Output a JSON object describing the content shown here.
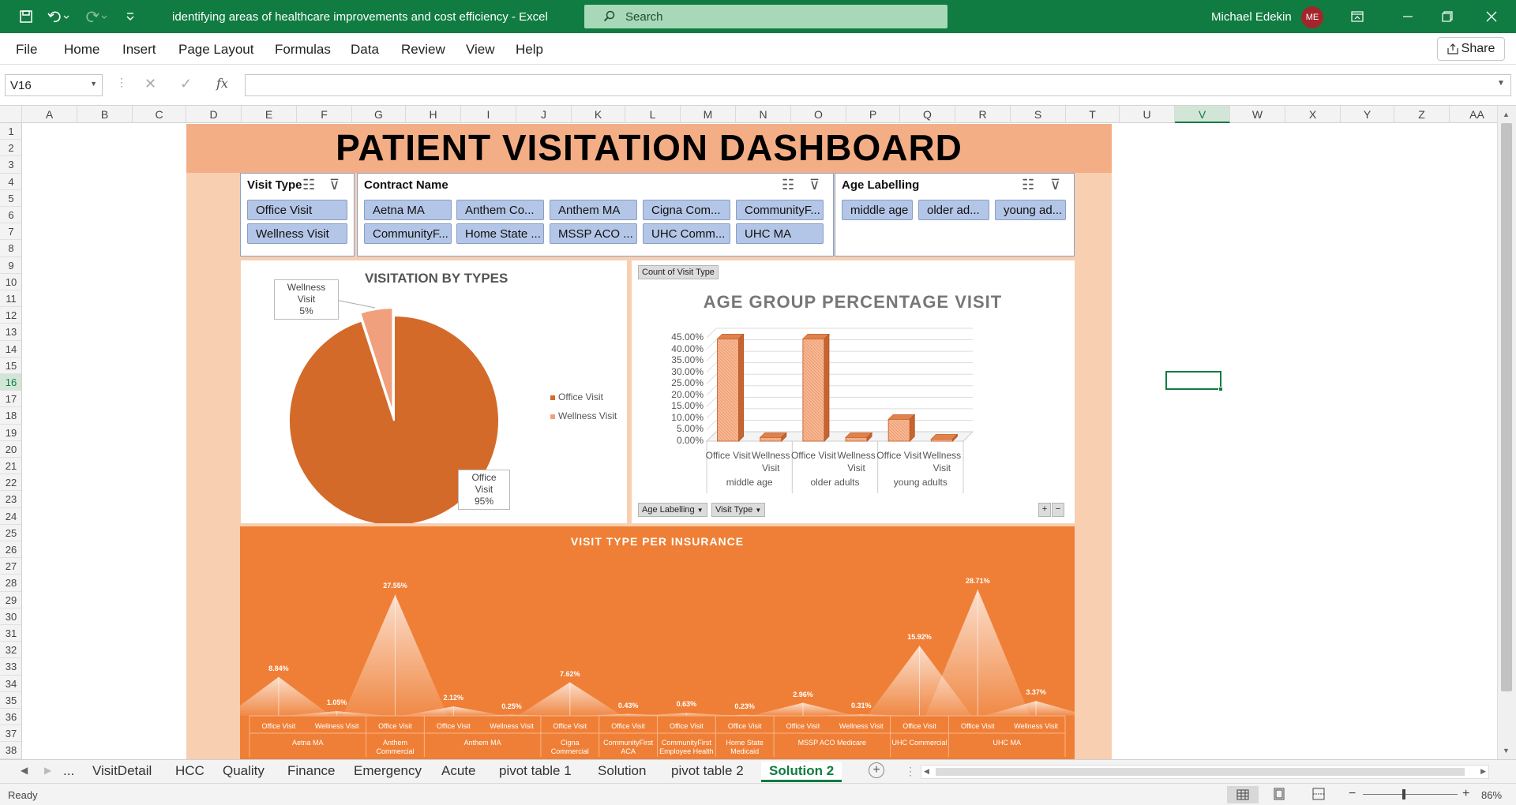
{
  "window": {
    "title": "identifying areas of healthcare improvements and cost efficiency  -  Excel",
    "search_placeholder": "Search",
    "user_name": "Michael Edekin",
    "user_initials": "ME"
  },
  "menu": {
    "items": [
      "File",
      "Home",
      "Insert",
      "Page Layout",
      "Formulas",
      "Data",
      "Review",
      "View",
      "Help"
    ],
    "share_label": "Share"
  },
  "formula_bar": {
    "name_box": "V16",
    "fx": "fx",
    "formula": ""
  },
  "columns": [
    "A",
    "B",
    "C",
    "D",
    "E",
    "F",
    "G",
    "H",
    "I",
    "J",
    "K",
    "L",
    "M",
    "N",
    "O",
    "P",
    "Q",
    "R",
    "S",
    "T",
    "U",
    "V",
    "W",
    "X",
    "Y",
    "Z",
    "AA"
  ],
  "selected_column": "V",
  "rows": [
    "1",
    "2",
    "3",
    "4",
    "5",
    "6",
    "7",
    "8",
    "9",
    "10",
    "11",
    "12",
    "13",
    "14",
    "15",
    "16",
    "17",
    "18",
    "19",
    "20",
    "21",
    "22",
    "23",
    "24",
    "25",
    "26",
    "27",
    "28",
    "29",
    "30",
    "31",
    "32",
    "33",
    "34",
    "35",
    "36",
    "37",
    "38"
  ],
  "selected_row": "16",
  "dashboard": {
    "title": "PATIENT VISITATION DASHBOARD",
    "slicers": {
      "visit_type": {
        "header": "Visit Type",
        "items": [
          "Office Visit",
          "Wellness Visit"
        ]
      },
      "contract_name": {
        "header": "Contract Name",
        "items": [
          "Aetna MA",
          "Anthem Co...",
          "Anthem MA",
          "Cigna Com...",
          "CommunityF...",
          "CommunityF...",
          "Home State ...",
          "MSSP ACO ...",
          "UHC Comm...",
          "UHC MA"
        ]
      },
      "age_labelling": {
        "header": "Age Labelling",
        "items": [
          "middle age",
          "older ad...",
          "young ad..."
        ]
      }
    }
  },
  "pie_chart": {
    "title": "VISITATION BY TYPES",
    "callouts": {
      "wellness": {
        "name": "Wellness Visit",
        "pct": "5%"
      },
      "office": {
        "name": "Office Visit",
        "pct": "95%"
      }
    },
    "legend": [
      "Office Visit",
      "Wellness Visit"
    ],
    "colors": {
      "office": "#d46a2a",
      "wellness": "#f0a07c"
    }
  },
  "bar_chart": {
    "field_button_top": "Count of Visit Type",
    "title": "AGE GROUP PERCENTAGE VISIT",
    "y_ticks": [
      "45.00%",
      "40.00%",
      "35.00%",
      "30.00%",
      "25.00%",
      "20.00%",
      "15.00%",
      "10.00%",
      "5.00%",
      "0.00%"
    ],
    "categories": [
      "Office Visit",
      "Wellness Visit",
      "Office Visit",
      "Wellness Visit",
      "Office Visit",
      "Wellness Visit"
    ],
    "groups": [
      "middle age",
      "older adults",
      "young adults"
    ],
    "field_buttons": [
      "Age Labelling",
      "Visit Type"
    ],
    "plus": "+",
    "minus": "−"
  },
  "area_chart": {
    "title": "VISIT TYPE PER INSURANCE",
    "labels": [
      "8.84%",
      "1.05%",
      "27.55%",
      "2.12%",
      "0.25%",
      "7.62%",
      "0.43%",
      "0.63%",
      "0.23%",
      "2.96%",
      "0.31%",
      "15.92%",
      "28.71%",
      "3.37%"
    ],
    "x_labels": [
      "Office Visit",
      "Wellness Visit",
      "Office Visit",
      "Office Visit",
      "Wellness Visit",
      "Office Visit",
      "Office Visit",
      "Office Visit",
      "Office Visit",
      "Office Visit",
      "Wellness Visit",
      "Office Visit",
      "Office Visit",
      "Wellness Visit"
    ],
    "groups": [
      "Aetna MA",
      "Anthem\nCommercial",
      "Anthem MA",
      "Cigna\nCommercial",
      "CommunityFirst\nACA",
      "CommunityFirst\nEmployee Health",
      "Home State\nMedicaid",
      "MSSP ACO Medicare",
      "UHC Commercial",
      "UHC MA"
    ]
  },
  "chart_data": [
    {
      "type": "pie",
      "title": "VISITATION BY TYPES",
      "categories": [
        "Office Visit",
        "Wellness Visit"
      ],
      "values": [
        95,
        5
      ],
      "legend": "right"
    },
    {
      "type": "bar",
      "title": "AGE GROUP PERCENTAGE VISIT",
      "categories": [
        "middle age - Office Visit",
        "middle age - Wellness Visit",
        "older adults - Office Visit",
        "older adults - Wellness Visit",
        "young adults - Office Visit",
        "young adults - Wellness Visit"
      ],
      "values": [
        44.5,
        1.6,
        44.5,
        1.6,
        9.5,
        0.9
      ],
      "ylim": [
        0,
        45
      ],
      "grid": true
    },
    {
      "type": "area",
      "title": "VISIT TYPE PER INSURANCE",
      "categories": [
        "Aetna MA Office Visit",
        "Aetna MA Wellness Visit",
        "Anthem Commercial Office Visit",
        "Anthem MA Office Visit",
        "Anthem MA Wellness Visit",
        "Cigna Commercial Office Visit",
        "CommunityFirst ACA Office Visit",
        "CommunityFirst Employee Health Office Visit",
        "Home State Medicaid Office Visit",
        "MSSP ACO Medicare Office Visit",
        "MSSP ACO Medicare Wellness Visit",
        "UHC Commercial Office Visit",
        "UHC MA Office Visit",
        "UHC MA Wellness Visit"
      ],
      "values": [
        8.84,
        1.05,
        27.55,
        2.12,
        0.25,
        7.62,
        0.43,
        0.63,
        0.23,
        2.96,
        0.31,
        15.92,
        28.71,
        3.37
      ]
    }
  ],
  "sheet_tabs": {
    "ellipsis": "...",
    "tabs": [
      "VisitDetail",
      "HCC",
      "Quality",
      "Finance",
      "Emergency",
      "Acute",
      "pivot table 1",
      "Solution",
      "pivot table 2",
      "Solution 2"
    ],
    "active": "Solution 2"
  },
  "status": {
    "ready": "Ready",
    "zoom": "86%"
  }
}
